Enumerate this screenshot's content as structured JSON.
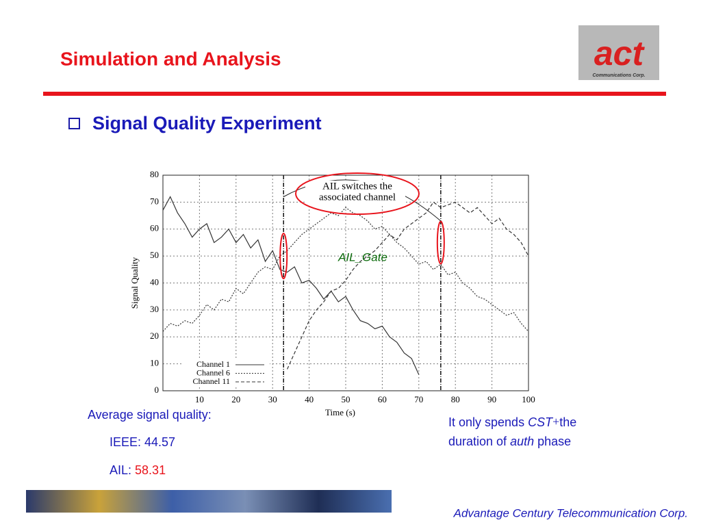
{
  "slide": {
    "title": "Simulation and Analysis",
    "bullet": "Signal Quality Experiment",
    "logo": {
      "text": "act",
      "subtext": "Communications Corp."
    },
    "notes": {
      "heading": "Average signal quality:",
      "ieee": "IEEE: 44.57",
      "ail_label": "AIL: ",
      "ail_value": "58.31"
    },
    "remark": {
      "line1": [
        "It only spends ",
        "CST",
        "+",
        "the"
      ],
      "line2": [
        "duration of ",
        "auth",
        " phase"
      ]
    },
    "footer": "Advantage Century Telecommunication Corp."
  },
  "chart_data": {
    "type": "line",
    "xlabel": "Time (s)",
    "ylabel": "Signal Quality",
    "xlim": [
      0,
      100
    ],
    "ylim": [
      0,
      80
    ],
    "xticks": [
      10,
      20,
      30,
      40,
      50,
      60,
      70,
      80,
      90,
      100
    ],
    "yticks": [
      0,
      10,
      20,
      30,
      40,
      50,
      60,
      70,
      80
    ],
    "grid": true,
    "legend": "lower left",
    "markers": [
      33,
      76
    ],
    "annotation": {
      "lines": [
        "AIL switches the",
        "associated channel"
      ],
      "gate": "AIL_Gate"
    },
    "x": [
      0,
      2,
      4,
      6,
      8,
      10,
      12,
      14,
      16,
      18,
      20,
      22,
      24,
      26,
      28,
      30,
      32,
      34,
      36,
      38,
      40,
      42,
      44,
      46,
      48,
      50,
      52,
      54,
      56,
      58,
      60,
      62,
      64,
      66,
      68,
      70,
      72,
      74,
      76,
      78,
      80,
      82,
      84,
      86,
      88,
      90,
      92,
      94,
      96,
      98,
      100
    ],
    "series": [
      {
        "name": "Channel 1",
        "color": "#333333",
        "style": "solid",
        "values": [
          67,
          72,
          66,
          62,
          57,
          60,
          62,
          55,
          57,
          60,
          55,
          58,
          53,
          56,
          48,
          52,
          45,
          44,
          46,
          40,
          41,
          38,
          34,
          37,
          33,
          35,
          30,
          26,
          25,
          23,
          24,
          20,
          18,
          14,
          12,
          6,
          null,
          null,
          null,
          null,
          null,
          null,
          null,
          null,
          null,
          null,
          null,
          null,
          null,
          null,
          null
        ]
      },
      {
        "name": "Channel 6",
        "color": "#333333",
        "style": "dotted",
        "values": [
          22,
          25,
          24,
          26,
          25,
          28,
          32,
          30,
          34,
          33,
          38,
          36,
          40,
          44,
          46,
          45,
          50,
          52,
          55,
          58,
          60,
          62,
          64,
          66,
          65,
          68,
          66,
          65,
          63,
          60,
          61,
          58,
          55,
          53,
          50,
          47,
          48,
          45,
          47,
          43,
          44,
          40,
          38,
          35,
          34,
          32,
          30,
          28,
          29,
          25,
          22
        ]
      },
      {
        "name": "Channel 11",
        "color": "#333333",
        "style": "dashed",
        "values": [
          null,
          null,
          null,
          null,
          null,
          null,
          null,
          null,
          null,
          null,
          null,
          null,
          null,
          null,
          null,
          null,
          null,
          8,
          14,
          20,
          26,
          30,
          33,
          37,
          38,
          41,
          45,
          48,
          50,
          52,
          55,
          58,
          56,
          60,
          62,
          64,
          66,
          70,
          68,
          69,
          70,
          68,
          66,
          68,
          65,
          62,
          64,
          60,
          58,
          55,
          50
        ]
      }
    ]
  }
}
